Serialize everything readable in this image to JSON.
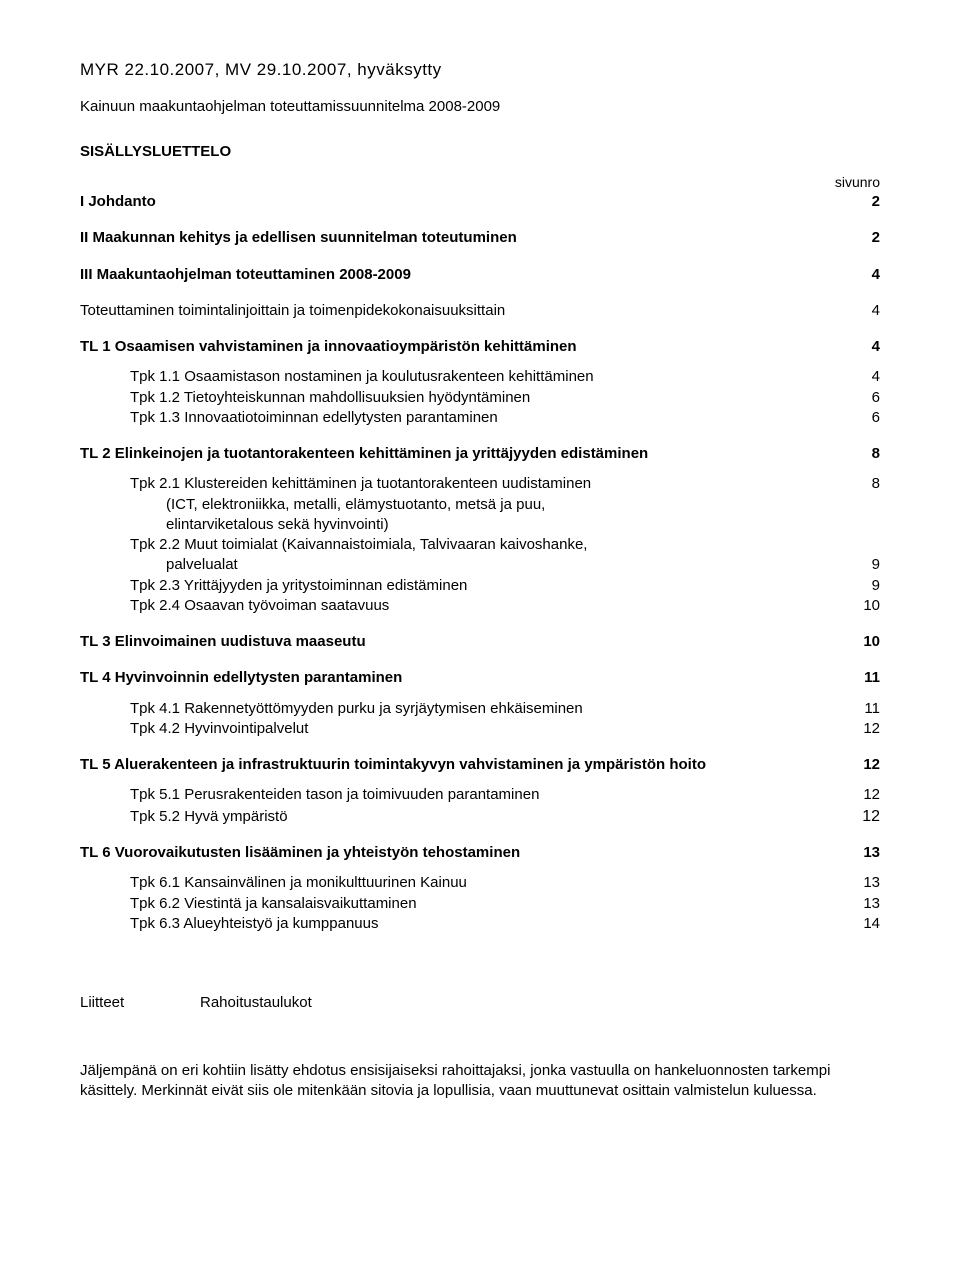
{
  "header": "MYR 22.10.2007, MV 29.10.2007, hyväksytty",
  "docTitle": "Kainuun maakuntaohjelman toteuttamissuunnitelma 2008-2009",
  "tocTitle": "SISÄLLYSLUETTELO",
  "sivunro": "sivunro",
  "toc": {
    "l1": {
      "label": "I Johdanto",
      "page": "2"
    },
    "l2": {
      "label": "II Maakunnan kehitys ja edellisen suunnitelman toteutuminen",
      "page": "2"
    },
    "l3": {
      "label": "III  Maakuntaohjelman toteuttaminen 2008-2009",
      "page": "4"
    },
    "l4": {
      "label": "Toteuttaminen toimintalinjoittain ja toimenpidekokonaisuuksittain",
      "page": "4"
    },
    "tl1": {
      "label": "TL 1 Osaamisen vahvistaminen ja innovaatioympäristön kehittäminen",
      "page": "4"
    },
    "tl1_1": {
      "label": "Tpk  1.1 Osaamistason nostaminen ja koulutusrakenteen kehittäminen",
      "page": "4"
    },
    "tl1_2": {
      "label": "Tpk  1.2 Tietoyhteiskunnan mahdollisuuksien hyödyntäminen",
      "page": "6"
    },
    "tl1_3": {
      "label": "Tpk  1.3  Innovaatiotoiminnan edellytysten parantaminen",
      "page": "6"
    },
    "tl2": {
      "label": "TL 2 Elinkeinojen ja tuotantorakenteen kehittäminen ja yrittäjyyden edistäminen",
      "page": "8"
    },
    "tl2_1a": {
      "label": "Tpk  2.1 Klustereiden kehittäminen ja tuotantorakenteen uudistaminen",
      "page": "8"
    },
    "tl2_1b": {
      "label": "(ICT, elektroniikka, metalli, elämystuotanto, metsä ja puu,"
    },
    "tl2_1c": {
      "label": "elintarviketalous sekä hyvinvointi)"
    },
    "tl2_2a": {
      "label": "Tpk  2.2 Muut toimialat (Kaivannaistoimiala, Talvivaaran kaivoshanke,"
    },
    "tl2_2b": {
      "label": "palvelualat",
      "page": "9"
    },
    "tl2_3": {
      "label": "Tpk  2.3 Yrittäjyyden ja yritystoiminnan edistäminen",
      "page": "9"
    },
    "tl2_4": {
      "label": "Tpk  2.4  Osaavan työvoiman saatavuus",
      "page": "10"
    },
    "tl3": {
      "label": "TL 3 Elinvoimainen uudistuva maaseutu",
      "page": "10"
    },
    "tl4": {
      "label": "TL 4 Hyvinvoinnin edellytysten parantaminen",
      "page": "11"
    },
    "tl4_1": {
      "label": "Tpk  4.1 Rakennetyöttömyyden purku ja syrjäytymisen ehkäiseminen",
      "page": "11"
    },
    "tl4_2": {
      "label": "Tpk  4.2 Hyvinvointipalvelut",
      "page": "12"
    },
    "tl5": {
      "label": "TL 5 Aluerakenteen ja infrastruktuurin toimintakyvyn vahvistaminen ja ympäristön hoito",
      "page": "12"
    },
    "tl5_1": {
      "label": "Tpk  5.1 Perusrakenteiden tason ja toimivuuden parantaminen",
      "page": "12"
    },
    "tl5_2": {
      "label": "Tpk  5.2 Hyvä ympäristö",
      "page": "12"
    },
    "tl6": {
      "label": "TL 6 Vuorovaikutusten lisääminen ja yhteistyön tehostaminen",
      "page": "13"
    },
    "tl6_1": {
      "label": "Tpk  6.1 Kansainvälinen ja monikulttuurinen Kainuu",
      "page": "13"
    },
    "tl6_2": {
      "label": "Tpk  6.2 Viestintä ja kansalaisvaikuttaminen",
      "page": "13"
    },
    "tl6_3": {
      "label": "Tpk  6.3 Alueyhteistyö ja kumppanuus",
      "page": "14"
    }
  },
  "liitteet": {
    "label": "Liitteet",
    "value": "Rahoitustaulukot"
  },
  "footer": "Jäljempänä on eri kohtiin lisätty ehdotus ensisijaiseksi rahoittajaksi, jonka vastuulla on hankeluonnosten tarkempi käsittely. Merkinnät eivät siis ole mitenkään sitovia ja lopullisia, vaan muuttunevat osittain valmistelun kuluessa."
}
